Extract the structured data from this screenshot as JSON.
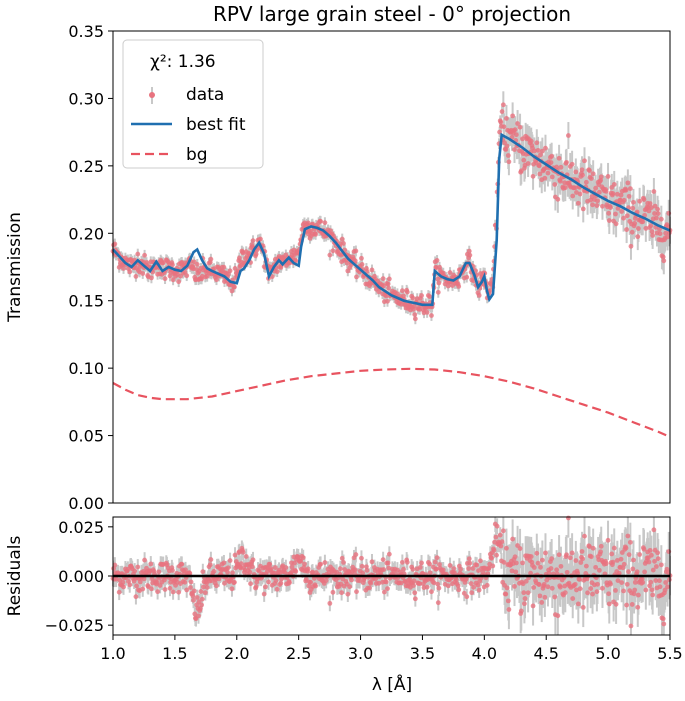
{
  "colors": {
    "data": "#e8737f",
    "errorbar": "#c8c8c8",
    "best_fit": "#1f6fb0",
    "bg": "#e8535f",
    "zero_line": "#000000"
  },
  "chart_data": [
    {
      "type": "line",
      "panel": "main",
      "title": "RPV large grain steel - 0° projection",
      "xlabel": "",
      "ylabel": "Transmission",
      "xlim": [
        1.0,
        5.5
      ],
      "ylim": [
        0.0,
        0.35
      ],
      "yticks": [
        0.0,
        0.05,
        0.1,
        0.15,
        0.2,
        0.25,
        0.3,
        0.35
      ],
      "ytick_labels": [
        "0.00",
        "0.05",
        "0.10",
        "0.15",
        "0.20",
        "0.25",
        "0.30",
        "0.35"
      ],
      "legend": {
        "position": "top-left",
        "chi2_label": "χ²:  1.36",
        "entries": [
          "data",
          "best fit",
          "bg"
        ]
      },
      "series": [
        {
          "name": "best fit",
          "style": "solid",
          "x": [
            1.0,
            1.05,
            1.1,
            1.15,
            1.2,
            1.25,
            1.3,
            1.35,
            1.4,
            1.45,
            1.5,
            1.55,
            1.6,
            1.65,
            1.68,
            1.72,
            1.76,
            1.8,
            1.85,
            1.9,
            1.95,
            2.0,
            2.03,
            2.06,
            2.1,
            2.14,
            2.18,
            2.22,
            2.26,
            2.3,
            2.34,
            2.37,
            2.42,
            2.46,
            2.5,
            2.52,
            2.55,
            2.6,
            2.65,
            2.7,
            2.75,
            2.8,
            2.85,
            2.9,
            2.95,
            3.0,
            3.05,
            3.1,
            3.15,
            3.2,
            3.25,
            3.3,
            3.35,
            3.4,
            3.45,
            3.5,
            3.55,
            3.58,
            3.6,
            3.65,
            3.7,
            3.75,
            3.8,
            3.85,
            3.88,
            3.92,
            3.95,
            3.98,
            4.0,
            4.02,
            4.04,
            4.07,
            4.1,
            4.12,
            4.14,
            4.16,
            4.2,
            4.3,
            4.4,
            4.5,
            4.6,
            4.7,
            4.8,
            4.9,
            5.0,
            5.1,
            5.2,
            5.3,
            5.4,
            5.5
          ],
          "y": [
            0.188,
            0.183,
            0.178,
            0.175,
            0.18,
            0.176,
            0.172,
            0.179,
            0.172,
            0.175,
            0.173,
            0.172,
            0.176,
            0.186,
            0.188,
            0.18,
            0.174,
            0.172,
            0.17,
            0.168,
            0.164,
            0.163,
            0.172,
            0.174,
            0.18,
            0.188,
            0.193,
            0.185,
            0.168,
            0.175,
            0.18,
            0.177,
            0.182,
            0.178,
            0.176,
            0.19,
            0.203,
            0.205,
            0.204,
            0.202,
            0.198,
            0.193,
            0.187,
            0.181,
            0.177,
            0.173,
            0.169,
            0.165,
            0.16,
            0.157,
            0.154,
            0.152,
            0.15,
            0.149,
            0.148,
            0.147,
            0.147,
            0.147,
            0.172,
            0.168,
            0.166,
            0.165,
            0.168,
            0.178,
            0.178,
            0.169,
            0.16,
            0.164,
            0.168,
            0.158,
            0.151,
            0.155,
            0.195,
            0.255,
            0.273,
            0.272,
            0.27,
            0.264,
            0.257,
            0.251,
            0.245,
            0.24,
            0.234,
            0.229,
            0.224,
            0.22,
            0.215,
            0.211,
            0.206,
            0.202
          ]
        },
        {
          "name": "bg",
          "style": "dashed",
          "x": [
            1.0,
            1.1,
            1.2,
            1.3,
            1.4,
            1.5,
            1.6,
            1.7,
            1.8,
            1.9,
            2.0,
            2.2,
            2.4,
            2.6,
            2.8,
            3.0,
            3.2,
            3.4,
            3.6,
            3.8,
            4.0,
            4.2,
            4.4,
            4.6,
            4.8,
            5.0,
            5.2,
            5.4,
            5.5
          ],
          "y": [
            0.089,
            0.084,
            0.08,
            0.078,
            0.077,
            0.077,
            0.077,
            0.078,
            0.079,
            0.081,
            0.083,
            0.087,
            0.091,
            0.094,
            0.096,
            0.098,
            0.099,
            0.0995,
            0.099,
            0.097,
            0.094,
            0.09,
            0.085,
            0.079,
            0.073,
            0.067,
            0.06,
            0.053,
            0.049
          ]
        },
        {
          "name": "data",
          "style": "markers_with_errorbars",
          "x_range": [
            1.0,
            5.5
          ],
          "approx_points": 900,
          "description_of_values": "scattered around best fit curve"
        }
      ]
    },
    {
      "type": "scatter",
      "panel": "residuals",
      "xlabel": "λ [Å]",
      "ylabel": "Residuals",
      "xlim": [
        1.0,
        5.5
      ],
      "ylim": [
        -0.03,
        0.03
      ],
      "xticks": [
        1.0,
        1.5,
        2.0,
        2.5,
        3.0,
        3.5,
        4.0,
        4.5,
        5.0,
        5.5
      ],
      "xtick_labels": [
        "1.0",
        "1.5",
        "2.0",
        "2.5",
        "3.0",
        "3.5",
        "4.0",
        "4.5",
        "5.0",
        "5.5"
      ],
      "yticks": [
        -0.025,
        0.0,
        0.025
      ],
      "ytick_labels": [
        "−0.025",
        "0.000",
        "0.025"
      ],
      "zero_line": 0.0,
      "residual_amplitude": {
        "below_4.15": 0.005,
        "above_4.15": 0.012
      },
      "features": [
        {
          "x": 1.68,
          "y": -0.018
        },
        {
          "x": 2.05,
          "y": 0.01
        },
        {
          "x": 2.5,
          "y": 0.009
        },
        {
          "x": 4.1,
          "y": 0.03
        }
      ]
    }
  ]
}
